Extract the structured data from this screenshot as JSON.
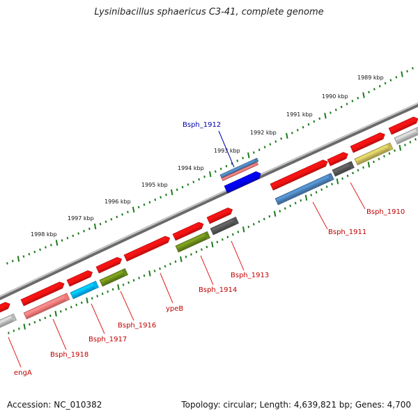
{
  "title": "Lysinibacillus sphaericus C3-41, complete genome",
  "accession": "Accession: NC_010382",
  "stats": "Topology: circular; Length: 4,639,821 bp; Genes: 4,700",
  "colors": {
    "backbone": "#8a8a8a",
    "ticks": "#1a7a1a",
    "gene_default": "#ee1111",
    "label": "#c00000",
    "label_selected": "#0000aa"
  },
  "kbp_labels": [
    "1989 kbp",
    "1990 kbp",
    "1991 kbp",
    "1992 kbp",
    "1993 kbp",
    "1994 kbp",
    "1995 kbp",
    "1996 kbp",
    "1997 kbp",
    "1998 kbp"
  ],
  "genes": [
    {
      "label": "Bsph_1910",
      "color": "#c8b85a"
    },
    {
      "label": "Bsph_1911",
      "color": "#4a7fb5"
    },
    {
      "label": "Bsph_1912",
      "color": "#0000ee",
      "selected": true
    },
    {
      "label": "Bsph_1913",
      "color": "#555555"
    },
    {
      "label": "Bsph_1914",
      "color": "#6a8a1a"
    },
    {
      "label": "ypeB",
      "color": "#ee1111"
    },
    {
      "label": "Bsph_1916",
      "color": "#6a8a1a"
    },
    {
      "label": "Bsph_1917",
      "color": "#00b0ee"
    },
    {
      "label": "Bsph_1918",
      "color": "#ee7777"
    },
    {
      "label": "engA",
      "color": "#ee1111"
    }
  ]
}
